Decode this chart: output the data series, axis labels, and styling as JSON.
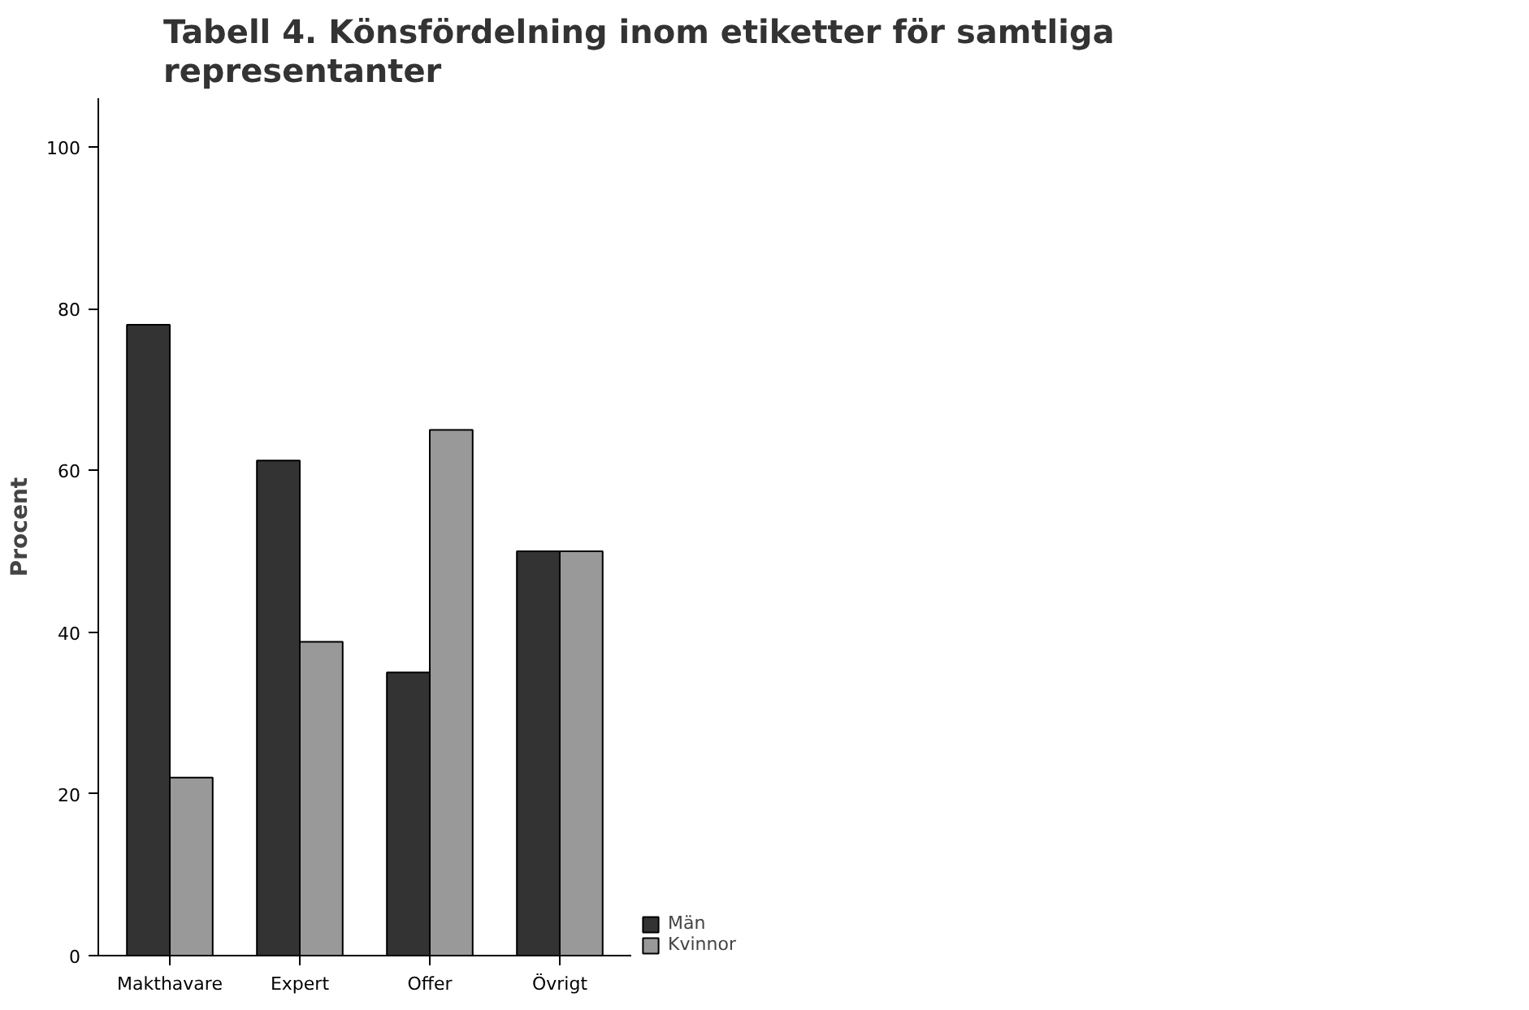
{
  "chart_data": {
    "type": "bar",
    "title": "Tabell 4. Könsfördelning inom etiketter för samtliga representanter",
    "ylabel": "Procent",
    "categories": [
      "Makthavare",
      "Expert",
      "Offer",
      "Övrigt"
    ],
    "series": [
      {
        "name": "Män",
        "color": "#333333",
        "values": [
          78,
          61.2,
          35,
          50
        ]
      },
      {
        "name": "Kvinnor",
        "color": "#999999",
        "values": [
          22,
          38.8,
          65,
          50
        ]
      }
    ],
    "ylim": [
      0,
      106
    ],
    "yticks": [
      0,
      20,
      40,
      60,
      80,
      100
    ],
    "grid": false,
    "legend": "bottom right"
  }
}
